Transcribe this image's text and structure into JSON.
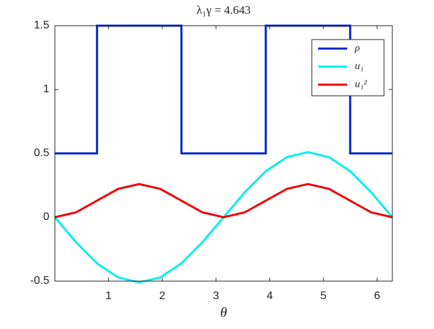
{
  "chart_data": {
    "type": "line",
    "title": "λ₁γ = 4.643",
    "xlabel": "θ",
    "xlim": [
      0,
      6.2832
    ],
    "ylim": [
      -0.5,
      1.5
    ],
    "xticks": [
      1,
      2,
      3,
      4,
      5,
      6
    ],
    "yticks": [
      -0.5,
      0,
      0.5,
      1,
      1.5
    ],
    "legend": "northeast",
    "series": [
      {
        "name": "ρ",
        "color": "#0022cc",
        "x": [
          0,
          0.785,
          0.785,
          2.356,
          2.356,
          3.927,
          3.927,
          5.498,
          5.498,
          6.2832
        ],
        "values": [
          0.5,
          0.5,
          1.5,
          1.5,
          0.5,
          0.5,
          1.5,
          1.5,
          0.5,
          0.5
        ]
      },
      {
        "name": "u₁",
        "color": "#00eeee",
        "x": [
          0,
          0.393,
          0.785,
          1.178,
          1.571,
          1.963,
          2.356,
          2.749,
          3.142,
          3.534,
          3.927,
          4.32,
          4.712,
          5.105,
          5.498,
          5.89,
          6.2832
        ],
        "values": [
          0,
          -0.195,
          -0.361,
          -0.471,
          -0.51,
          -0.471,
          -0.361,
          -0.195,
          0,
          0.195,
          0.361,
          0.471,
          0.51,
          0.471,
          0.361,
          0.195,
          0
        ]
      },
      {
        "name": "u₁²",
        "color": "#ee0000",
        "x": [
          0,
          0.393,
          0.785,
          1.178,
          1.571,
          1.963,
          2.356,
          2.749,
          3.142,
          3.534,
          3.927,
          4.32,
          4.712,
          5.105,
          5.498,
          5.89,
          6.2832
        ],
        "values": [
          0,
          0.038,
          0.13,
          0.222,
          0.26,
          0.222,
          0.13,
          0.038,
          0,
          0.038,
          0.13,
          0.222,
          0.26,
          0.222,
          0.13,
          0.038,
          0
        ]
      }
    ]
  }
}
